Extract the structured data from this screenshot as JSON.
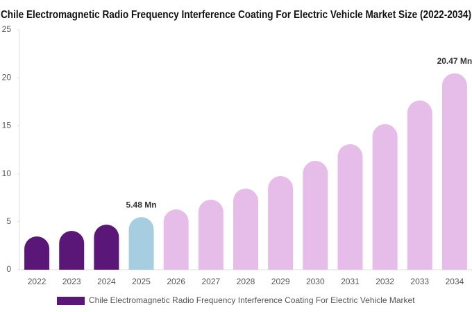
{
  "chart_data": {
    "type": "bar",
    "title": "Chile Electromagnetic Radio Frequency Interference Coating For Electric Vehicle Market Size (2022-2034)",
    "categories": [
      "2022",
      "2023",
      "2024",
      "2025",
      "2026",
      "2027",
      "2028",
      "2029",
      "2030",
      "2031",
      "2032",
      "2033",
      "2034"
    ],
    "series": [
      {
        "name": "Chile Electromagnetic Radio Frequency Interference Coating For Electric Vehicle Market",
        "color": "#5b1778",
        "values": [
          3.47,
          4.05,
          4.7,
          5.48,
          6.29,
          7.3,
          8.45,
          9.75,
          11.34,
          13.08,
          15.17,
          17.63,
          20.47
        ],
        "value_labels": [
          null,
          null,
          null,
          "5.48 Mn",
          null,
          null,
          null,
          null,
          null,
          null,
          null,
          null,
          "20.47 Mn"
        ],
        "colors": [
          "#5b1778",
          "#5b1778",
          "#5b1778",
          "#a6cde0",
          "#e6bde9",
          "#e6bde9",
          "#e6bde9",
          "#e6bde9",
          "#e6bde9",
          "#e6bde9",
          "#e6bde9",
          "#e6bde9",
          "#e6bde9"
        ]
      }
    ],
    "ylim": [
      0,
      25
    ],
    "yticks": [
      0,
      5,
      10,
      15,
      20,
      25
    ],
    "legend": "bottom"
  }
}
